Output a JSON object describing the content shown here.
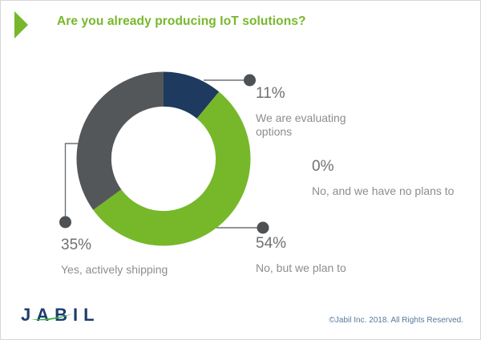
{
  "header": {
    "title": "Are you already producing IoT solutions?",
    "accent_color": "#76b82a"
  },
  "chart_data": {
    "type": "pie",
    "subtype": "donut",
    "title": "Are you already producing IoT solutions?",
    "unit": "%",
    "start_angle_deg": 0,
    "direction": "clockwise",
    "inner_radius_ratio": 0.6,
    "legend_position": "callouts",
    "segments": [
      {
        "label": "We are evaluating options",
        "value": 11,
        "value_label": "11%",
        "color": "#1e3a5f"
      },
      {
        "label": "No, but we plan to",
        "value": 54,
        "value_label": "54%",
        "color": "#76b82a"
      },
      {
        "label": "Yes, actively shipping",
        "value": 35,
        "value_label": "35%",
        "color": "#54575a"
      },
      {
        "label": "No, and we have no plans to",
        "value": 0,
        "value_label": "0%",
        "color": null
      }
    ],
    "leader_style": {
      "line_color": "#6f7275",
      "dot_color": "#4d5154"
    }
  },
  "footer": {
    "logo_text": "JABIL",
    "copyright": "©Jabil Inc. 2018. All Rights Reserved."
  }
}
